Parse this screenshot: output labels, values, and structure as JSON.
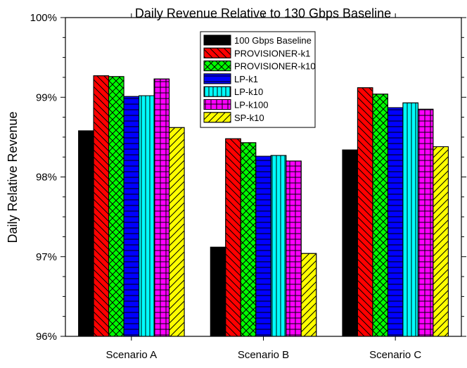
{
  "chart_data": {
    "type": "bar",
    "title": "Daily Revenue Relative to 130 Gbps Baseline",
    "xlabel": "",
    "ylabel": "Daily Relative Revenue",
    "ylim": [
      96,
      100
    ],
    "y_ticks": [
      96,
      97,
      98,
      99,
      100
    ],
    "y_tick_labels": [
      "96%",
      "97%",
      "98%",
      "99%",
      "100%"
    ],
    "categories": [
      "Scenario A",
      "Scenario B",
      "Scenario C"
    ],
    "grid": false,
    "legend_position": "top-center",
    "series": [
      {
        "name": "100 Gbps Baseline",
        "color": "#000000",
        "pattern": "solid",
        "values": [
          98.58,
          97.12,
          98.34
        ]
      },
      {
        "name": "PROVISIONER-k1",
        "color": "#ff0000",
        "pattern": "diag-back",
        "values": [
          99.27,
          98.48,
          99.12
        ]
      },
      {
        "name": "PROVISIONER-k10",
        "color": "#00ff00",
        "pattern": "cross",
        "values": [
          99.26,
          98.43,
          99.04
        ]
      },
      {
        "name": "LP-k1",
        "color": "#0000ff",
        "pattern": "horizontal",
        "values": [
          99.01,
          98.26,
          98.87
        ]
      },
      {
        "name": "LP-k10",
        "color": "#00ffff",
        "pattern": "vertical",
        "values": [
          99.02,
          98.27,
          98.93
        ]
      },
      {
        "name": "LP-k100",
        "color": "#ff00ff",
        "pattern": "grid",
        "values": [
          99.23,
          98.2,
          98.85
        ]
      },
      {
        "name": "SP-k10",
        "color": "#ffff00",
        "pattern": "diag-fwd",
        "values": [
          98.62,
          97.04,
          98.38
        ]
      }
    ]
  }
}
